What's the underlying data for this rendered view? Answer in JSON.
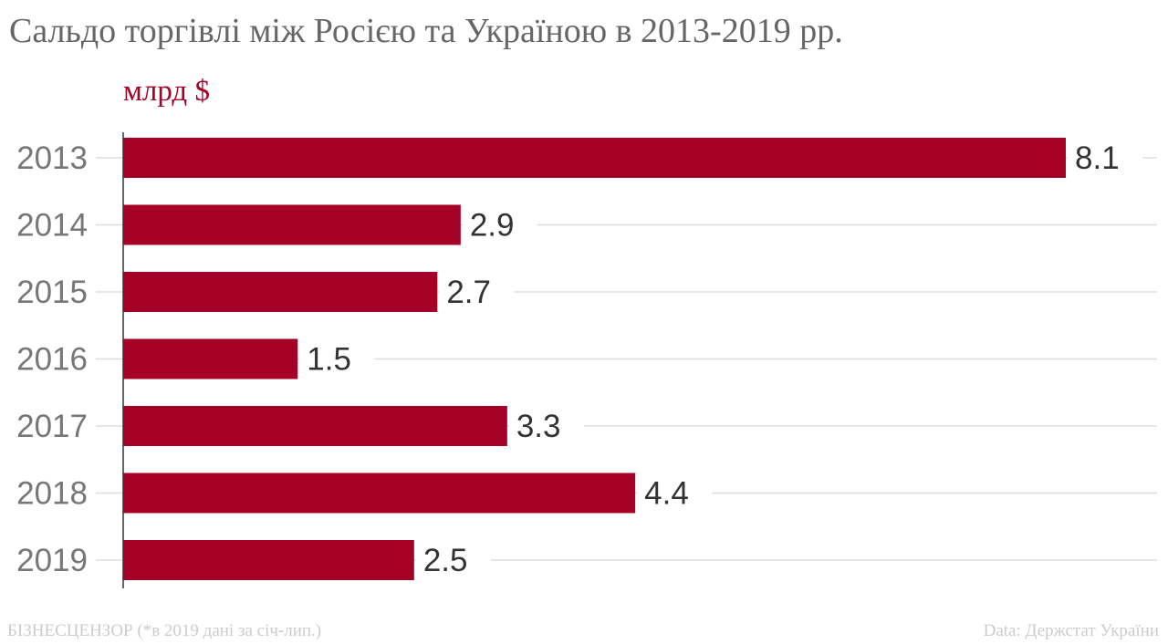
{
  "chart_data": {
    "type": "bar",
    "orientation": "horizontal",
    "title": "Сальдо торгівлі між Росією та Україною в 2013-2019 рр.",
    "ylabel": "млрд $",
    "categories": [
      "2013",
      "2014",
      "2015",
      "2016",
      "2017",
      "2018",
      "2019"
    ],
    "values": [
      8.1,
      2.9,
      2.7,
      1.5,
      3.3,
      4.4,
      2.5
    ],
    "xlim": [
      0,
      8.1
    ],
    "grid": true,
    "bar_color": "#a50026"
  },
  "footer": {
    "left": "БІЗНЕСЦЕНЗОР (*в 2019 дані за січ-лип.)",
    "right": "Data: Держстат України"
  }
}
